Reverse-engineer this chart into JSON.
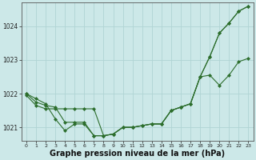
{
  "background_color": "#cce8e8",
  "plot_bg_color": "#cce8e8",
  "grid_color": "#b0d4d4",
  "line_color": "#2d6e2d",
  "marker_color": "#2d6e2d",
  "xlabel": "Graphe pression niveau de la mer (hPa)",
  "xlabel_fontsize": 7,
  "xlim": [
    -0.5,
    23.5
  ],
  "ylim": [
    1020.6,
    1024.7
  ],
  "yticks": [
    1021,
    1022,
    1023,
    1024
  ],
  "xticks": [
    0,
    1,
    2,
    3,
    4,
    5,
    6,
    7,
    8,
    9,
    10,
    11,
    12,
    13,
    14,
    15,
    16,
    17,
    18,
    19,
    20,
    21,
    22,
    23
  ],
  "series1_x": [
    0,
    1,
    2,
    3,
    4,
    5,
    6,
    7,
    8,
    9,
    10,
    11,
    12,
    13,
    14,
    15,
    16,
    17,
    18,
    19,
    20,
    21,
    22,
    23
  ],
  "series1_y": [
    1022.0,
    1021.85,
    1021.7,
    1021.25,
    1020.9,
    1021.1,
    1021.1,
    1020.75,
    1020.75,
    1020.8,
    1021.0,
    1021.0,
    1021.05,
    1021.1,
    1021.1,
    1021.5,
    1021.6,
    1021.7,
    1022.5,
    1023.1,
    1023.8,
    1024.1,
    1024.45,
    1024.6
  ],
  "series2_x": [
    0,
    1,
    2,
    3,
    4,
    5,
    6,
    7,
    8,
    9,
    10,
    11,
    12,
    13,
    14,
    15,
    16,
    17,
    18,
    19,
    20,
    21,
    22,
    23
  ],
  "series2_y": [
    1022.0,
    1021.75,
    1021.65,
    1021.6,
    1021.15,
    1021.15,
    1021.15,
    1020.75,
    1020.75,
    1020.8,
    1021.0,
    1021.0,
    1021.05,
    1021.1,
    1021.1,
    1021.5,
    1021.6,
    1021.7,
    1022.5,
    1022.55,
    1022.25,
    1022.55,
    1022.95,
    1023.05
  ],
  "series3_x": [
    0,
    1,
    2,
    3,
    4,
    5,
    6,
    7,
    8,
    9,
    10,
    11,
    12,
    13,
    14,
    15,
    16,
    17,
    18,
    19,
    20,
    21,
    22,
    23
  ],
  "series3_y": [
    1021.95,
    1021.65,
    1021.55,
    1021.55,
    1021.55,
    1021.55,
    1021.55,
    1021.55,
    1020.75,
    1020.8,
    1021.0,
    1021.0,
    1021.05,
    1021.1,
    1021.1,
    1021.5,
    1021.6,
    1021.7,
    1022.5,
    1023.1,
    1023.8,
    1024.1,
    1024.45,
    1024.6
  ]
}
